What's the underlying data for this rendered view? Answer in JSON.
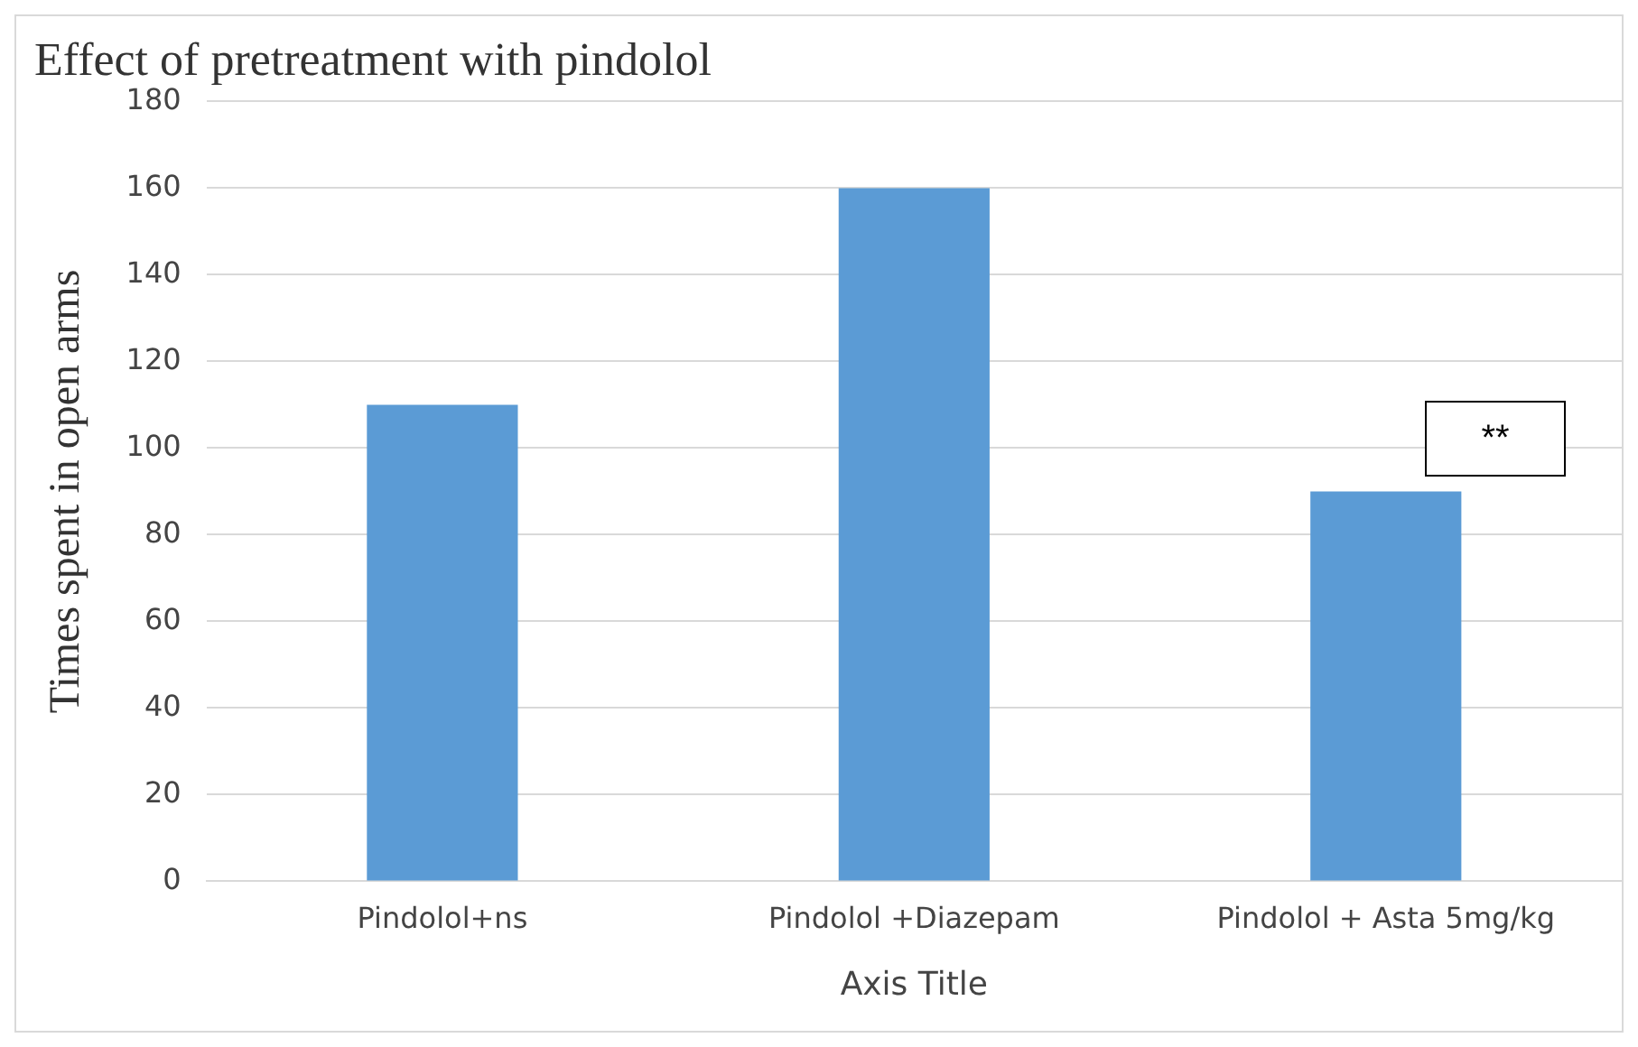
{
  "chart_data": {
    "type": "bar",
    "title": "Effect of pretreatment with pindolol",
    "xlabel": "Axis Title",
    "ylabel": "Times spent in open arms",
    "categories": [
      "Pindolol+ns",
      "Pindolol +Diazepam",
      "Pindolol + Asta 5mg/kg"
    ],
    "values": [
      110,
      160,
      90
    ],
    "color": "#5b9bd5",
    "ylim": [
      0,
      180
    ],
    "yticks": [
      0,
      20,
      40,
      60,
      80,
      100,
      120,
      140,
      160,
      180
    ],
    "grid": "y",
    "legend": false,
    "annotations": [
      "**"
    ]
  }
}
